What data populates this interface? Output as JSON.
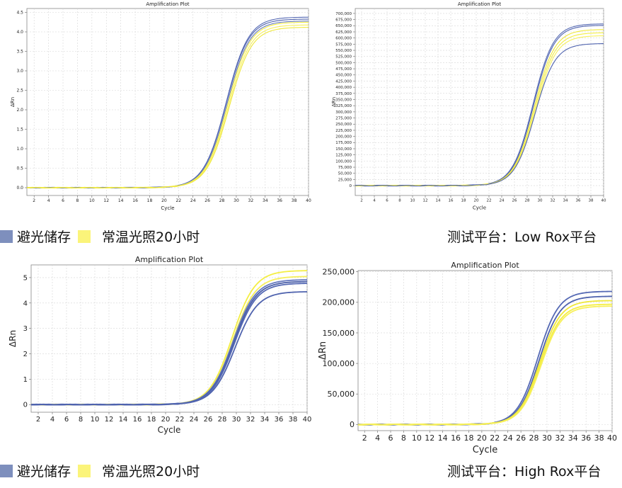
{
  "legend": {
    "dark_label": "避光储存",
    "light_label": "常温光照20小时",
    "dark_color": "#7e8fbd",
    "light_color": "#fbf47a"
  },
  "captions": {
    "low_rox": "测试平台：Low Rox平台",
    "high_rox": "测试平台：High Rox平台"
  },
  "chart_data": [
    {
      "type": "line",
      "title": "Amplification Plot",
      "xlabel": "Cycle",
      "ylabel": "ΔRn",
      "xlim": [
        1,
        40
      ],
      "ylim": [
        -0.2,
        4.6
      ],
      "xticks": [
        2,
        4,
        6,
        8,
        10,
        12,
        14,
        16,
        18,
        20,
        22,
        24,
        26,
        28,
        30,
        32,
        34,
        36,
        38,
        40
      ],
      "yticks": [
        0,
        0.5,
        1,
        1.5,
        2,
        2.5,
        3,
        3.5,
        4,
        4.5
      ],
      "ytick_labels": [
        "0.0",
        "0.5",
        "1.0",
        "1.5",
        "2.0",
        "2.5",
        "3.0",
        "3.5",
        "4.0",
        "4.5"
      ],
      "grid": true,
      "series_style": [
        {
          "group": "dark",
          "plateau": 4.38,
          "ct": 28.6,
          "slope": 1.55
        },
        {
          "group": "dark",
          "plateau": 4.33,
          "ct": 28.6,
          "slope": 1.55
        },
        {
          "group": "dark",
          "plateau": 4.28,
          "ct": 28.7,
          "slope": 1.55
        },
        {
          "group": "light",
          "plateau": 4.25,
          "ct": 28.8,
          "slope": 1.55
        },
        {
          "group": "light",
          "plateau": 4.18,
          "ct": 28.9,
          "slope": 1.55
        },
        {
          "group": "light",
          "plateau": 4.12,
          "ct": 29.0,
          "slope": 1.55
        }
      ]
    },
    {
      "type": "line",
      "title": "Amplification Plot",
      "xlabel": "Cycle",
      "ylabel": "ΔRn",
      "xlim": [
        1,
        40
      ],
      "ylim": [
        -40000,
        720000
      ],
      "xticks": [
        2,
        4,
        6,
        8,
        10,
        12,
        14,
        16,
        18,
        20,
        22,
        24,
        26,
        28,
        30,
        32,
        34,
        36,
        38,
        40
      ],
      "yticks": [
        0,
        25000,
        50000,
        75000,
        100000,
        125000,
        150000,
        175000,
        200000,
        225000,
        250000,
        275000,
        300000,
        325000,
        350000,
        375000,
        400000,
        425000,
        450000,
        475000,
        500000,
        525000,
        550000,
        575000,
        600000,
        625000,
        650000,
        675000,
        700000
      ],
      "ytick_labels": [
        "0",
        "25,000",
        "50,000",
        "75,000",
        "100,000",
        "125,000",
        "150,000",
        "175,000",
        "200,000",
        "225,000",
        "250,000",
        "275,000",
        "300,000",
        "325,000",
        "350,000",
        "375,000",
        "400,000",
        "425,000",
        "450,000",
        "475,000",
        "500,000",
        "525,000",
        "550,000",
        "575,000",
        "600,000",
        "625,000",
        "650,000",
        "675,000",
        "700,000"
      ],
      "grid": true,
      "series_style": [
        {
          "group": "dark",
          "plateau": 658000,
          "ct": 28.9,
          "slope": 1.6
        },
        {
          "group": "dark",
          "plateau": 652000,
          "ct": 29.0,
          "slope": 1.6
        },
        {
          "group": "light",
          "plateau": 635000,
          "ct": 29.1,
          "slope": 1.6
        },
        {
          "group": "light",
          "plateau": 622000,
          "ct": 29.2,
          "slope": 1.6
        },
        {
          "group": "light",
          "plateau": 610000,
          "ct": 29.3,
          "slope": 1.6
        },
        {
          "group": "dark",
          "plateau": 578000,
          "ct": 29.2,
          "slope": 1.6
        }
      ]
    },
    {
      "type": "line",
      "title": "Amplification Plot",
      "xlabel": "Cycle",
      "ylabel": "ΔRn",
      "xlim": [
        1,
        40
      ],
      "ylim": [
        -0.3,
        5.5
      ],
      "xticks": [
        2,
        4,
        6,
        8,
        10,
        12,
        14,
        16,
        18,
        20,
        22,
        24,
        26,
        28,
        30,
        32,
        34,
        36,
        38,
        40
      ],
      "yticks": [
        0,
        1,
        2,
        3,
        4,
        5
      ],
      "ytick_labels": [
        "0",
        "1",
        "2",
        "3",
        "4",
        "5"
      ],
      "grid": true,
      "series_style": [
        {
          "group": "light",
          "plateau": 5.28,
          "ct": 29.4,
          "slope": 1.6
        },
        {
          "group": "light",
          "plateau": 5.05,
          "ct": 29.5,
          "slope": 1.6
        },
        {
          "group": "dark",
          "plateau": 4.92,
          "ct": 29.5,
          "slope": 1.6
        },
        {
          "group": "dark",
          "plateau": 4.85,
          "ct": 29.6,
          "slope": 1.6
        },
        {
          "group": "dark",
          "plateau": 4.78,
          "ct": 29.7,
          "slope": 1.6
        },
        {
          "group": "dark",
          "plateau": 4.45,
          "ct": 29.8,
          "slope": 1.6
        }
      ]
    },
    {
      "type": "line",
      "title": "Amplification Plot",
      "xlabel": "Cycle",
      "ylabel": "ΔRn",
      "xlim": [
        1,
        40
      ],
      "ylim": [
        -10000,
        252000
      ],
      "xticks": [
        2,
        4,
        6,
        8,
        10,
        12,
        14,
        16,
        18,
        20,
        22,
        24,
        26,
        28,
        30,
        32,
        34,
        36,
        38,
        40
      ],
      "yticks": [
        0,
        50000,
        100000,
        150000,
        200000,
        250000
      ],
      "ytick_labels": [
        "0",
        "50,000",
        "100,000",
        "150,000",
        "200,000",
        "250,000"
      ],
      "grid": true,
      "series_style": [
        {
          "group": "dark",
          "plateau": 218000,
          "ct": 28.6,
          "slope": 1.6
        },
        {
          "group": "dark",
          "plateau": 210000,
          "ct": 28.8,
          "slope": 1.6
        },
        {
          "group": "light",
          "plateau": 203000,
          "ct": 28.9,
          "slope": 1.6
        },
        {
          "group": "light",
          "plateau": 197000,
          "ct": 29.0,
          "slope": 1.6
        },
        {
          "group": "light",
          "plateau": 194000,
          "ct": 29.1,
          "slope": 1.6
        }
      ]
    }
  ]
}
